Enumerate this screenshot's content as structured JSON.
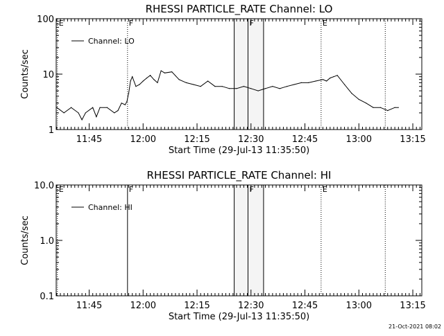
{
  "chart_data": [
    {
      "type": "line",
      "title": "RHESSI PARTICLE_RATE Channel: LO",
      "xlabel": "Start Time (29-Jul-13 11:35:50)",
      "ylabel": "Counts/sec",
      "yscale": "log",
      "ylim": [
        1,
        100
      ],
      "y_ticks": [
        1,
        10,
        100
      ],
      "y_tick_labels": [
        "1",
        "10",
        "100"
      ],
      "xlim": [
        "11:35:50",
        "13:17:30"
      ],
      "x_ticks": [
        "11:45",
        "12:00",
        "12:15",
        "12:30",
        "12:45",
        "13:00",
        "13:15"
      ],
      "legend": {
        "placement": "top-left",
        "entries": [
          "Channel: LO"
        ]
      },
      "grid": false,
      "series": [
        {
          "name": "Channel: LO",
          "x": [
            "11:36",
            "11:38",
            "11:40",
            "11:42",
            "11:43",
            "11:44",
            "11:46",
            "11:47",
            "11:48",
            "11:50",
            "11:52",
            "11:53",
            "11:54",
            "11:55",
            "11:55:30",
            "11:56",
            "11:56:30",
            "11:57",
            "11:58",
            "11:59",
            "12:00",
            "12:01",
            "12:02",
            "12:03",
            "12:04",
            "12:05",
            "12:06",
            "12:08",
            "12:10",
            "12:12",
            "12:14",
            "12:16",
            "12:18",
            "12:20",
            "12:22",
            "12:24",
            "12:26",
            "12:28",
            "12:30",
            "12:32",
            "12:34",
            "12:36",
            "12:38",
            "12:40",
            "12:42",
            "12:44",
            "12:46",
            "12:48",
            "12:50",
            "12:51",
            "12:52",
            "12:53",
            "12:54",
            "12:56",
            "12:58",
            "13:00",
            "13:02",
            "13:04",
            "13:06",
            "13:08",
            "13:10",
            "13:11"
          ],
          "values": [
            2.5,
            2.0,
            2.5,
            2.0,
            1.5,
            2.0,
            2.5,
            1.7,
            2.5,
            2.5,
            2.0,
            2.2,
            3.0,
            2.8,
            3.2,
            4.5,
            7.5,
            9.0,
            6.0,
            6.5,
            7.5,
            8.5,
            9.5,
            8.0,
            7.0,
            11.5,
            10.5,
            11.0,
            8.0,
            7.0,
            6.5,
            6.0,
            7.5,
            6.0,
            6.0,
            5.5,
            5.5,
            6.0,
            5.5,
            5.0,
            5.5,
            6.0,
            5.5,
            6.0,
            6.5,
            7.0,
            7.0,
            7.5,
            8.0,
            7.5,
            8.5,
            9.0,
            9.5,
            6.5,
            4.5,
            3.5,
            3.0,
            2.5,
            2.5,
            2.2,
            2.5,
            2.5
          ]
        }
      ],
      "markers": [
        {
          "time": "11:36:10",
          "label": "E",
          "style": "dotted"
        },
        {
          "time": "11:55:40",
          "label": "F",
          "style": "dotted"
        },
        {
          "time": "12:25:20",
          "label": "",
          "style": "solid"
        },
        {
          "time": "12:29:10",
          "label": "F",
          "style": "solid"
        },
        {
          "time": "12:33:30",
          "label": "",
          "style": "solid"
        },
        {
          "time": "12:49:30",
          "label": "E",
          "style": "dotted"
        },
        {
          "time": "13:07:20",
          "label": "",
          "style": "dotted"
        }
      ],
      "shaded_spans": [
        {
          "from": "12:25:20",
          "to": "12:33:30"
        }
      ]
    },
    {
      "type": "line",
      "title": "RHESSI PARTICLE_RATE Channel: HI",
      "xlabel": "Start Time (29-Jul-13 11:35:50)",
      "ylabel": "Counts/sec",
      "yscale": "log",
      "ylim": [
        0.1,
        10
      ],
      "y_ticks": [
        0.1,
        1,
        10
      ],
      "y_tick_labels": [
        "0.1",
        "1.0",
        "10.0"
      ],
      "xlim": [
        "11:35:50",
        "13:17:30"
      ],
      "x_ticks": [
        "11:45",
        "12:00",
        "12:15",
        "12:30",
        "12:45",
        "13:00",
        "13:15"
      ],
      "legend": {
        "placement": "top-left",
        "entries": [
          "Channel: HI"
        ]
      },
      "grid": false,
      "series": [
        {
          "name": "Channel: HI",
          "x": [],
          "values": []
        }
      ],
      "markers": [
        {
          "time": "11:36:10",
          "label": "E",
          "style": "dotted"
        },
        {
          "time": "11:55:40",
          "label": "F",
          "style": "solid"
        },
        {
          "time": "12:25:20",
          "label": "",
          "style": "solid"
        },
        {
          "time": "12:29:10",
          "label": "F",
          "style": "solid"
        },
        {
          "time": "12:33:30",
          "label": "",
          "style": "solid"
        },
        {
          "time": "12:49:30",
          "label": "E",
          "style": "dotted"
        },
        {
          "time": "13:07:20",
          "label": "",
          "style": "dotted"
        }
      ],
      "shaded_spans": [
        {
          "from": "12:25:20",
          "to": "12:33:30"
        }
      ]
    }
  ],
  "footer": {
    "timestamp": "21-Oct-2021 08:02"
  }
}
